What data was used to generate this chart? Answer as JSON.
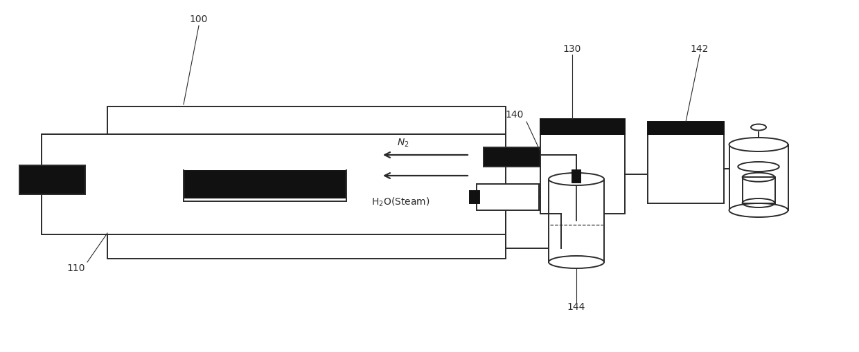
{
  "bg_color": "#ffffff",
  "line_color": "#2a2a2a",
  "black_fill": "#111111",
  "fig_width": 12.4,
  "fig_height": 5.1,
  "dpi": 100
}
